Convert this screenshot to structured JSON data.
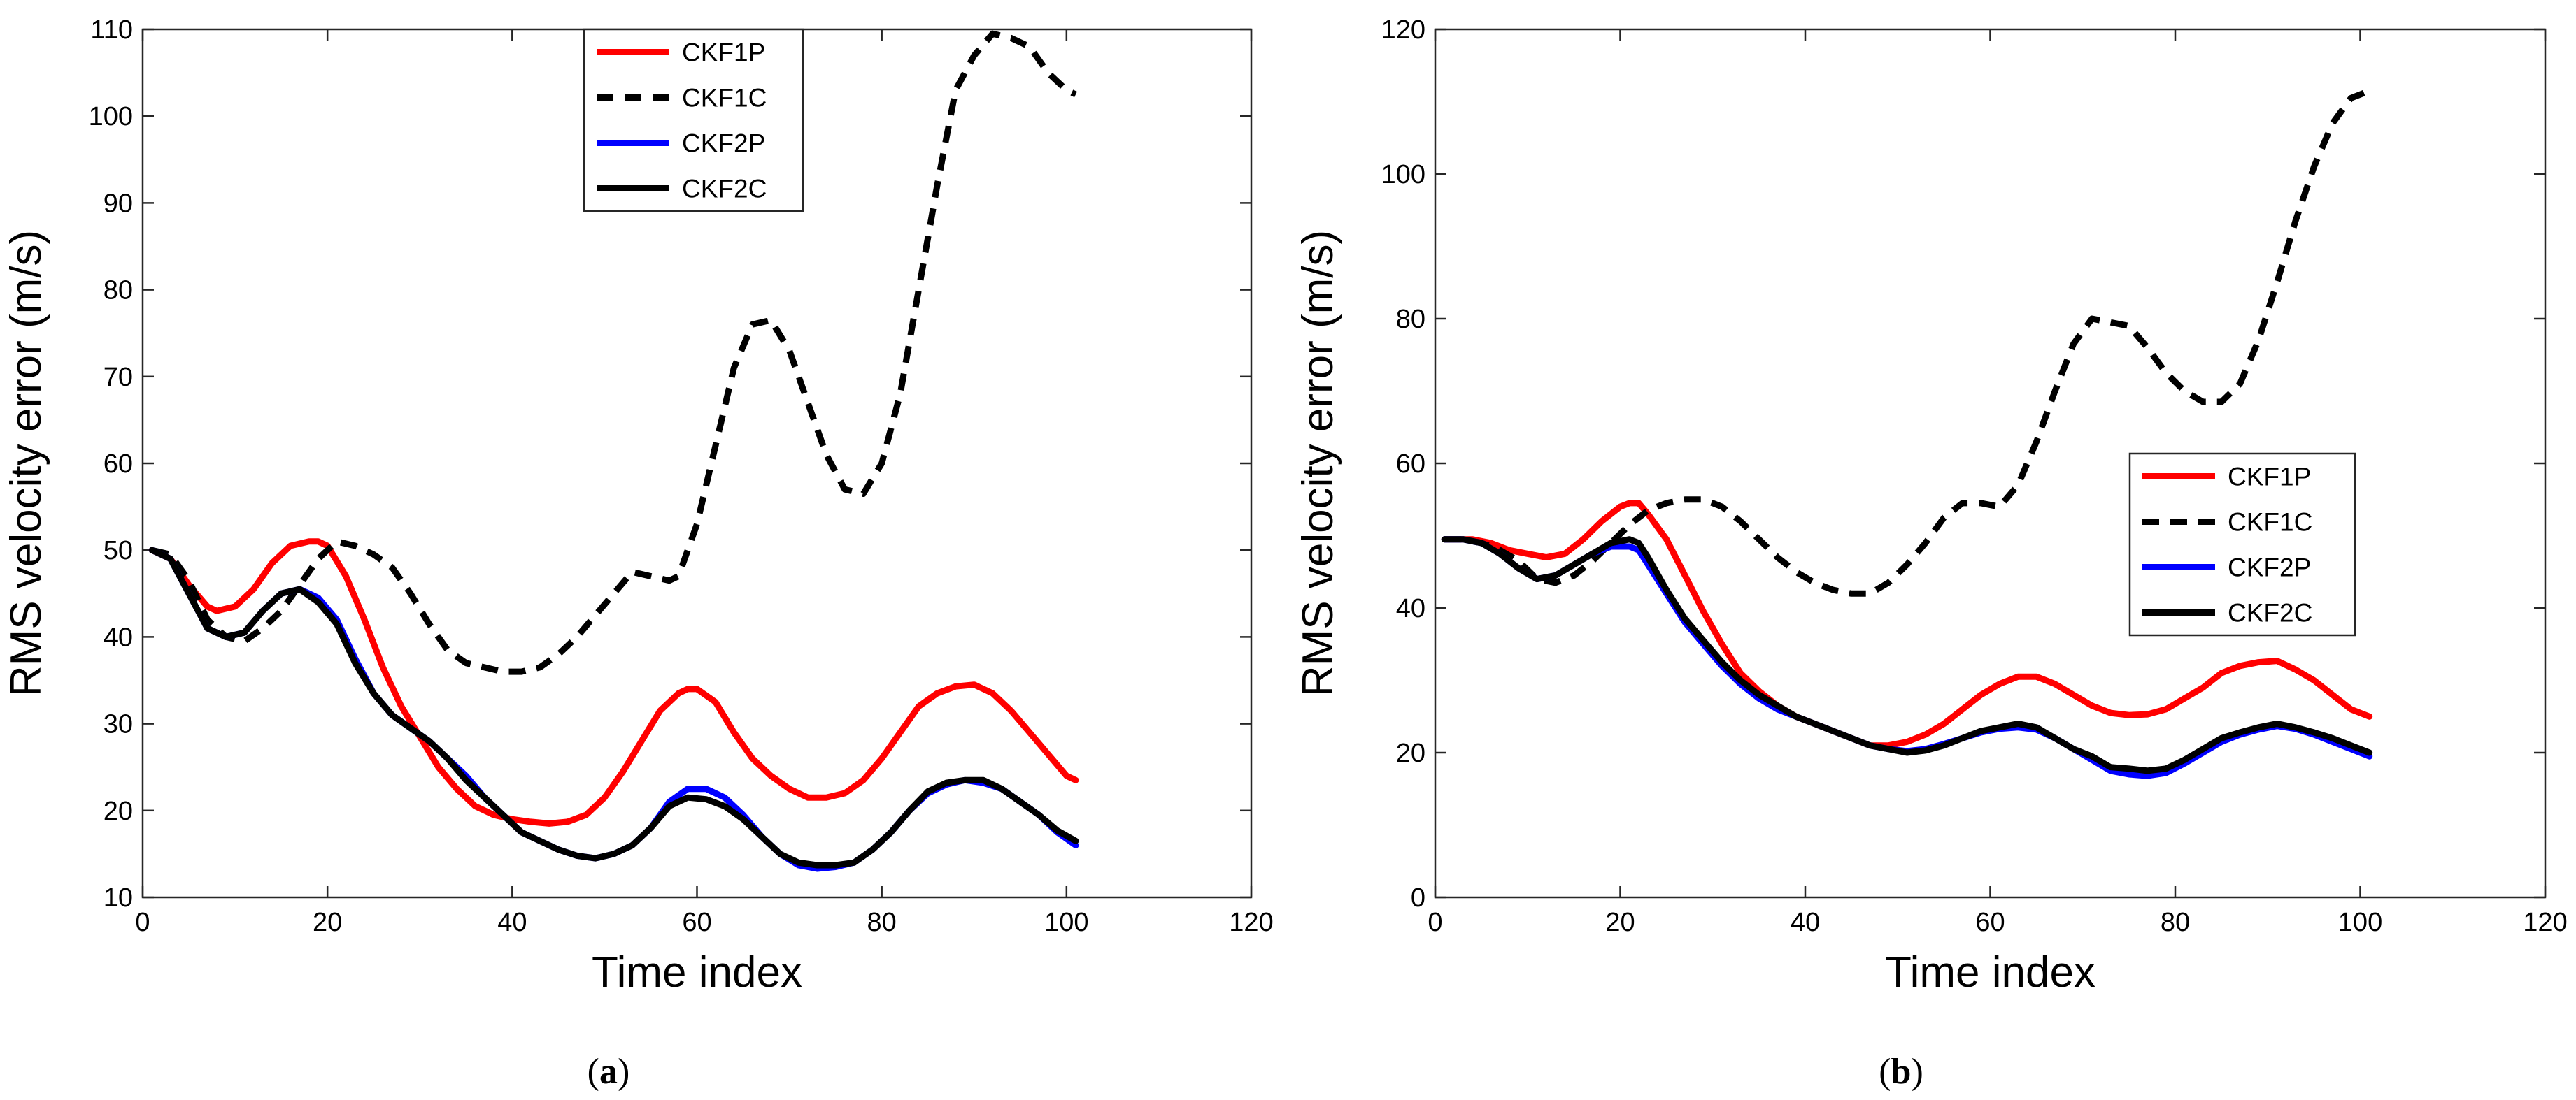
{
  "chart_data": [
    {
      "panel_label_prefix": "(",
      "panel_label_letter": "a",
      "panel_label_suffix": ")",
      "type": "line",
      "title": "",
      "xlabel": "Time index",
      "ylabel": "RMS velocity error (m/s)",
      "xlim": [
        0,
        120
      ],
      "ylim": [
        10,
        110
      ],
      "xticks": [
        0,
        20,
        40,
        60,
        80,
        100,
        120
      ],
      "yticks": [
        10,
        20,
        30,
        40,
        50,
        60,
        70,
        80,
        90,
        100,
        110
      ],
      "grid": false,
      "legend_position": "top-center",
      "series": [
        {
          "name": "CKF1P",
          "color": "#ff0000",
          "dash": "solid",
          "x": [
            1,
            3,
            5,
            7,
            8,
            10,
            12,
            14,
            16,
            18,
            19,
            20,
            22,
            24,
            26,
            28,
            30,
            32,
            34,
            36,
            38,
            40,
            42,
            44,
            46,
            48,
            50,
            52,
            54,
            56,
            58,
            59,
            60,
            62,
            64,
            66,
            68,
            70,
            72,
            74,
            76,
            78,
            80,
            82,
            84,
            86,
            88,
            90,
            92,
            94,
            96,
            98,
            100,
            101
          ],
          "y": [
            50,
            49,
            46,
            43.5,
            43,
            43.5,
            45.5,
            48.5,
            50.5,
            51,
            51,
            50.5,
            47,
            42,
            36.5,
            32,
            28.5,
            25,
            22.5,
            20.5,
            19.5,
            19,
            18.7,
            18.5,
            18.7,
            19.5,
            21.5,
            24.5,
            28,
            31.5,
            33.5,
            34,
            34,
            32.5,
            29,
            26,
            24,
            22.5,
            21.5,
            21.5,
            22,
            23.5,
            26,
            29,
            32,
            33.5,
            34.3,
            34.5,
            33.5,
            31.5,
            29,
            26.5,
            24,
            23.5
          ]
        },
        {
          "name": "CKF1C",
          "color": "#000000",
          "dash": "dashed",
          "x": [
            1,
            3,
            5,
            7,
            9,
            11,
            13,
            15,
            17,
            19,
            21,
            23,
            25,
            27,
            29,
            31,
            33,
            35,
            37,
            39,
            41,
            43,
            45,
            47,
            49,
            51,
            53,
            55,
            57,
            58,
            60,
            62,
            64,
            66,
            68,
            70,
            72,
            74,
            76,
            78,
            80,
            82,
            84,
            86,
            88,
            90,
            92,
            94,
            96,
            98,
            100,
            101
          ],
          "y": [
            50,
            49.5,
            46.5,
            42,
            40,
            39.5,
            41,
            43,
            46,
            49,
            51,
            50.5,
            49.5,
            48,
            45,
            41.5,
            38.5,
            37,
            36.5,
            36,
            36,
            36.5,
            38,
            40,
            42.5,
            45,
            47.5,
            47,
            46.5,
            47,
            53,
            62,
            71,
            76,
            76.5,
            73,
            67,
            61,
            57,
            56.5,
            60,
            68,
            80,
            92,
            103,
            107,
            109.5,
            109,
            108,
            105,
            103,
            102.5
          ]
        },
        {
          "name": "CKF2P",
          "color": "#0000ff",
          "dash": "solid",
          "x": [
            1,
            3,
            5,
            7,
            9,
            11,
            13,
            15,
            17,
            19,
            21,
            23,
            25,
            27,
            29,
            31,
            33,
            35,
            37,
            39,
            41,
            43,
            45,
            47,
            49,
            51,
            53,
            55,
            57,
            59,
            61,
            63,
            65,
            67,
            69,
            71,
            73,
            75,
            77,
            79,
            81,
            83,
            85,
            87,
            89,
            91,
            93,
            95,
            97,
            99,
            101
          ],
          "y": [
            50,
            49,
            45,
            41,
            40,
            40.5,
            43,
            45,
            45.5,
            44.5,
            42,
            37.5,
            33.5,
            31,
            29.5,
            28,
            26,
            24,
            21.5,
            19.5,
            17.5,
            16.5,
            15.5,
            14.8,
            14.5,
            15,
            16,
            18,
            21,
            22.5,
            22.5,
            21.5,
            19.5,
            17,
            15,
            13.7,
            13.3,
            13.5,
            14,
            15.5,
            17.5,
            20,
            22,
            23,
            23.5,
            23.2,
            22.5,
            21,
            19.5,
            17.5,
            16
          ]
        },
        {
          "name": "CKF2C",
          "color": "#000000",
          "dash": "solid",
          "x": [
            1,
            3,
            5,
            7,
            9,
            11,
            13,
            15,
            17,
            19,
            21,
            23,
            25,
            27,
            29,
            31,
            33,
            35,
            37,
            39,
            41,
            43,
            45,
            47,
            49,
            51,
            53,
            55,
            57,
            59,
            61,
            63,
            65,
            67,
            69,
            71,
            73,
            75,
            77,
            79,
            81,
            83,
            85,
            87,
            89,
            91,
            93,
            95,
            97,
            99,
            101
          ],
          "y": [
            50,
            49,
            45,
            41,
            40,
            40.5,
            43,
            45,
            45.5,
            44,
            41.5,
            37,
            33.5,
            31,
            29.5,
            28,
            26,
            23.5,
            21.5,
            19.5,
            17.5,
            16.5,
            15.5,
            14.8,
            14.5,
            15,
            16,
            18,
            20.5,
            21.5,
            21.3,
            20.5,
            19,
            17,
            15,
            14,
            13.7,
            13.7,
            14,
            15.5,
            17.5,
            20,
            22.2,
            23.2,
            23.5,
            23.5,
            22.5,
            21,
            19.5,
            17.7,
            16.5
          ]
        }
      ]
    },
    {
      "panel_label_prefix": "(",
      "panel_label_letter": "b",
      "panel_label_suffix": ")",
      "type": "line",
      "title": "",
      "xlabel": "Time index",
      "ylabel": "RMS velocity error (m/s)",
      "xlim": [
        0,
        120
      ],
      "ylim": [
        0,
        120
      ],
      "xticks": [
        0,
        20,
        40,
        60,
        80,
        100,
        120
      ],
      "yticks": [
        0,
        20,
        40,
        60,
        80,
        100,
        120
      ],
      "grid": false,
      "legend_position": "right-middle",
      "series": [
        {
          "name": "CKF1P",
          "color": "#ff0000",
          "dash": "solid",
          "x": [
            1,
            4,
            6,
            8,
            10,
            12,
            14,
            16,
            18,
            20,
            21,
            22,
            23,
            25,
            27,
            29,
            31,
            33,
            35,
            37,
            39,
            41,
            43,
            45,
            47,
            49,
            51,
            53,
            55,
            57,
            59,
            61,
            63,
            65,
            67,
            69,
            71,
            73,
            75,
            77,
            79,
            81,
            83,
            85,
            87,
            89,
            91,
            93,
            95,
            97,
            99,
            101
          ],
          "y": [
            49.5,
            49.5,
            49,
            48,
            47.5,
            47,
            47.5,
            49.5,
            52,
            54,
            54.5,
            54.5,
            53,
            49.5,
            44.5,
            39.5,
            35,
            31,
            28.5,
            26.5,
            25,
            24,
            23,
            22,
            21,
            21,
            21.5,
            22.5,
            24,
            26,
            28,
            29.5,
            30.5,
            30.5,
            29.5,
            28,
            26.5,
            25.5,
            25.2,
            25.3,
            26,
            27.5,
            29,
            31,
            32,
            32.5,
            32.7,
            31.5,
            30,
            28,
            26,
            25
          ]
        },
        {
          "name": "CKF1C",
          "color": "#000000",
          "dash": "dashed",
          "x": [
            1,
            3,
            5,
            7,
            9,
            11,
            13,
            15,
            17,
            19,
            21,
            23,
            25,
            27,
            29,
            31,
            33,
            35,
            37,
            39,
            41,
            43,
            45,
            47,
            49,
            51,
            53,
            55,
            57,
            59,
            61,
            63,
            65,
            67,
            69,
            71,
            73,
            75,
            77,
            79,
            81,
            83,
            85,
            87,
            89,
            91,
            93,
            95,
            97,
            99,
            101
          ],
          "y": [
            49.5,
            49.5,
            49,
            48,
            46.5,
            44,
            43.5,
            44.5,
            46.5,
            49,
            51.5,
            53.5,
            54.5,
            55,
            55,
            54,
            52,
            49.5,
            47,
            45,
            43.5,
            42.5,
            42,
            42,
            43.5,
            46,
            49,
            52.5,
            54.5,
            54.5,
            54,
            57,
            63,
            70,
            76.5,
            80,
            79.5,
            79,
            76,
            72.5,
            70,
            68.5,
            68.5,
            71,
            77,
            85,
            93.5,
            101,
            107,
            110.5,
            111.5
          ]
        },
        {
          "name": "CKF2P",
          "color": "#0000ff",
          "dash": "solid",
          "x": [
            1,
            3,
            5,
            7,
            9,
            11,
            13,
            15,
            17,
            19,
            21,
            22,
            23,
            25,
            27,
            29,
            31,
            33,
            35,
            37,
            39,
            41,
            43,
            45,
            47,
            49,
            51,
            53,
            55,
            57,
            59,
            61,
            63,
            65,
            67,
            69,
            71,
            73,
            75,
            77,
            79,
            81,
            83,
            85,
            87,
            89,
            91,
            93,
            95,
            97,
            99,
            101
          ],
          "y": [
            49.5,
            49.5,
            49,
            47.5,
            45.5,
            44,
            44.5,
            46,
            47.5,
            48.5,
            48.5,
            48,
            46,
            42,
            38,
            35,
            32,
            29.5,
            27.5,
            26,
            25,
            24,
            23,
            22,
            21,
            20.5,
            20.2,
            20.5,
            21.2,
            22,
            22.8,
            23.3,
            23.5,
            23.2,
            22,
            20.5,
            19,
            17.5,
            17,
            16.8,
            17.2,
            18.5,
            20,
            21.5,
            22.5,
            23.2,
            23.7,
            23.3,
            22.5,
            21.5,
            20.5,
            19.5
          ]
        },
        {
          "name": "CKF2C",
          "color": "#000000",
          "dash": "solid",
          "x": [
            1,
            3,
            5,
            7,
            9,
            11,
            13,
            15,
            17,
            19,
            21,
            22,
            23,
            25,
            27,
            29,
            31,
            33,
            35,
            37,
            39,
            41,
            43,
            45,
            47,
            49,
            51,
            53,
            55,
            57,
            59,
            61,
            63,
            65,
            67,
            69,
            71,
            73,
            75,
            77,
            79,
            81,
            83,
            85,
            87,
            89,
            91,
            93,
            95,
            97,
            99,
            101
          ],
          "y": [
            49.5,
            49.5,
            49,
            47.5,
            45.5,
            44,
            44.5,
            46,
            47.5,
            49,
            49.5,
            49,
            47,
            42.5,
            38.5,
            35.5,
            32.5,
            30,
            28,
            26.5,
            25,
            24,
            23,
            22,
            21,
            20.5,
            20,
            20.3,
            21,
            22,
            23,
            23.5,
            24,
            23.5,
            22,
            20.5,
            19.5,
            18,
            17.8,
            17.5,
            17.8,
            19,
            20.5,
            22,
            22.8,
            23.5,
            24,
            23.5,
            22.8,
            22,
            21,
            20
          ]
        }
      ]
    }
  ]
}
